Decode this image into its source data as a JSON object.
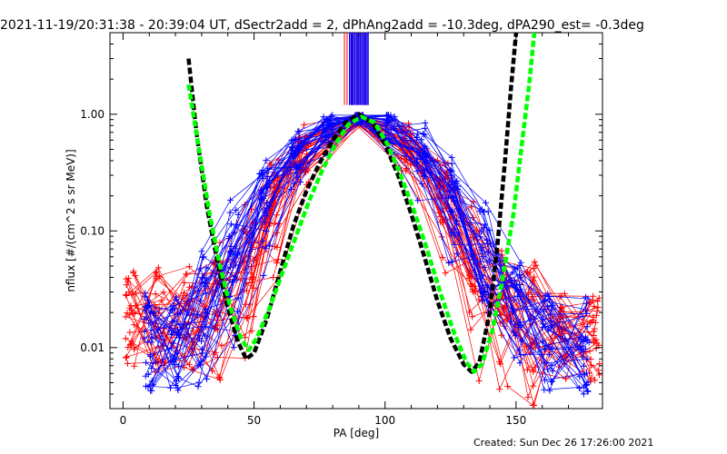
{
  "title": "2021-11-19/20:31:38 - 20:39:04 UT, dSectr2add = 2, dPhAng2add = -10.3deg, dPA290_est= -0.3deg",
  "footer": "Created: Sun Dec 26 17:26:00 2021",
  "colors": {
    "red": "#ff0000",
    "blue": "#0000ff",
    "black": "#000000",
    "green": "#00ff00"
  },
  "chart_data": {
    "type": "line",
    "xlabel": "PA [deg]",
    "ylabel": "nflux [#/(cm^2 s sr MeV)]",
    "xlim": [
      -5,
      183
    ],
    "ylim": [
      0.003,
      5.0
    ],
    "yscale": "log",
    "xticks": [
      0,
      50,
      100,
      150
    ],
    "xtick_labels": [
      "0",
      "50",
      "100",
      "150"
    ],
    "yticks": [
      0.01,
      0.1,
      1.0
    ],
    "ytick_labels": [
      "0.01",
      "0.10",
      "1.00"
    ],
    "fit_curves": [
      {
        "color": "black",
        "style": "dashed",
        "points": [
          [
            25,
            3.0
          ],
          [
            28,
            0.7
          ],
          [
            32,
            0.16
          ],
          [
            36,
            0.055
          ],
          [
            40,
            0.022
          ],
          [
            44,
            0.011
          ],
          [
            47,
            0.008
          ],
          [
            50,
            0.009
          ],
          [
            55,
            0.018
          ],
          [
            60,
            0.045
          ],
          [
            65,
            0.11
          ],
          [
            70,
            0.22
          ],
          [
            75,
            0.38
          ],
          [
            80,
            0.6
          ],
          [
            85,
            0.85
          ],
          [
            90,
            1.0
          ],
          [
            95,
            0.85
          ],
          [
            100,
            0.55
          ],
          [
            105,
            0.3
          ],
          [
            110,
            0.14
          ],
          [
            115,
            0.06
          ],
          [
            120,
            0.025
          ],
          [
            125,
            0.012
          ],
          [
            130,
            0.0072
          ],
          [
            133,
            0.0062
          ],
          [
            136,
            0.0075
          ],
          [
            140,
            0.02
          ],
          [
            143,
            0.08
          ],
          [
            146,
            0.45
          ],
          [
            148,
            1.6
          ],
          [
            150,
            5.0
          ]
        ]
      },
      {
        "color": "green",
        "style": "dashed",
        "points": [
          [
            25,
            1.8
          ],
          [
            29,
            0.5
          ],
          [
            33,
            0.14
          ],
          [
            37,
            0.05
          ],
          [
            41,
            0.022
          ],
          [
            45,
            0.012
          ],
          [
            48,
            0.0095
          ],
          [
            51,
            0.012
          ],
          [
            56,
            0.022
          ],
          [
            61,
            0.045
          ],
          [
            66,
            0.09
          ],
          [
            71,
            0.18
          ],
          [
            76,
            0.33
          ],
          [
            81,
            0.55
          ],
          [
            86,
            0.82
          ],
          [
            91,
            0.95
          ],
          [
            96,
            0.85
          ],
          [
            101,
            0.55
          ],
          [
            106,
            0.3
          ],
          [
            111,
            0.15
          ],
          [
            116,
            0.07
          ],
          [
            121,
            0.03
          ],
          [
            126,
            0.014
          ],
          [
            131,
            0.0075
          ],
          [
            134,
            0.0062
          ],
          [
            137,
            0.0072
          ],
          [
            141,
            0.014
          ],
          [
            145,
            0.04
          ],
          [
            149,
            0.14
          ],
          [
            152,
            0.5
          ],
          [
            155,
            1.8
          ],
          [
            157,
            5.0
          ]
        ]
      }
    ],
    "series": [
      {
        "color": "red",
        "marker": "+",
        "pa": [
          3,
          14,
          25,
          36,
          48,
          58,
          69,
          90,
          108,
          122,
          134,
          145,
          156,
          168,
          180
        ],
        "peak": 0.95,
        "low_left": 0.05,
        "low_right": 0.022,
        "sigma": 14,
        "start_left": [
          0.006,
          0.05
        ],
        "end_right": [
          0.005,
          0.03
        ]
      },
      {
        "color": "blue",
        "marker": "+",
        "pa": [
          10,
          20,
          30,
          42,
          54,
          66,
          78,
          90,
          102,
          114,
          126,
          138,
          150,
          162,
          176
        ],
        "peak": 0.98,
        "low_left": 0.045,
        "low_right": 0.05,
        "sigma": 16,
        "start_left": [
          0.004,
          0.03
        ],
        "end_right": [
          0.004,
          0.03
        ]
      }
    ],
    "sector_markers": {
      "red_pa": [
        84.5,
        85.5,
        86.5,
        87.5,
        88.5,
        89.5,
        90.5,
        91.5,
        92.5,
        93.5
      ],
      "blue_pa": [
        86.5,
        87.2,
        87.9,
        88.6,
        89.3,
        90.0,
        90.7,
        91.4,
        92.1,
        92.8,
        93.5
      ],
      "y_range": [
        1.2,
        5.0
      ]
    }
  }
}
